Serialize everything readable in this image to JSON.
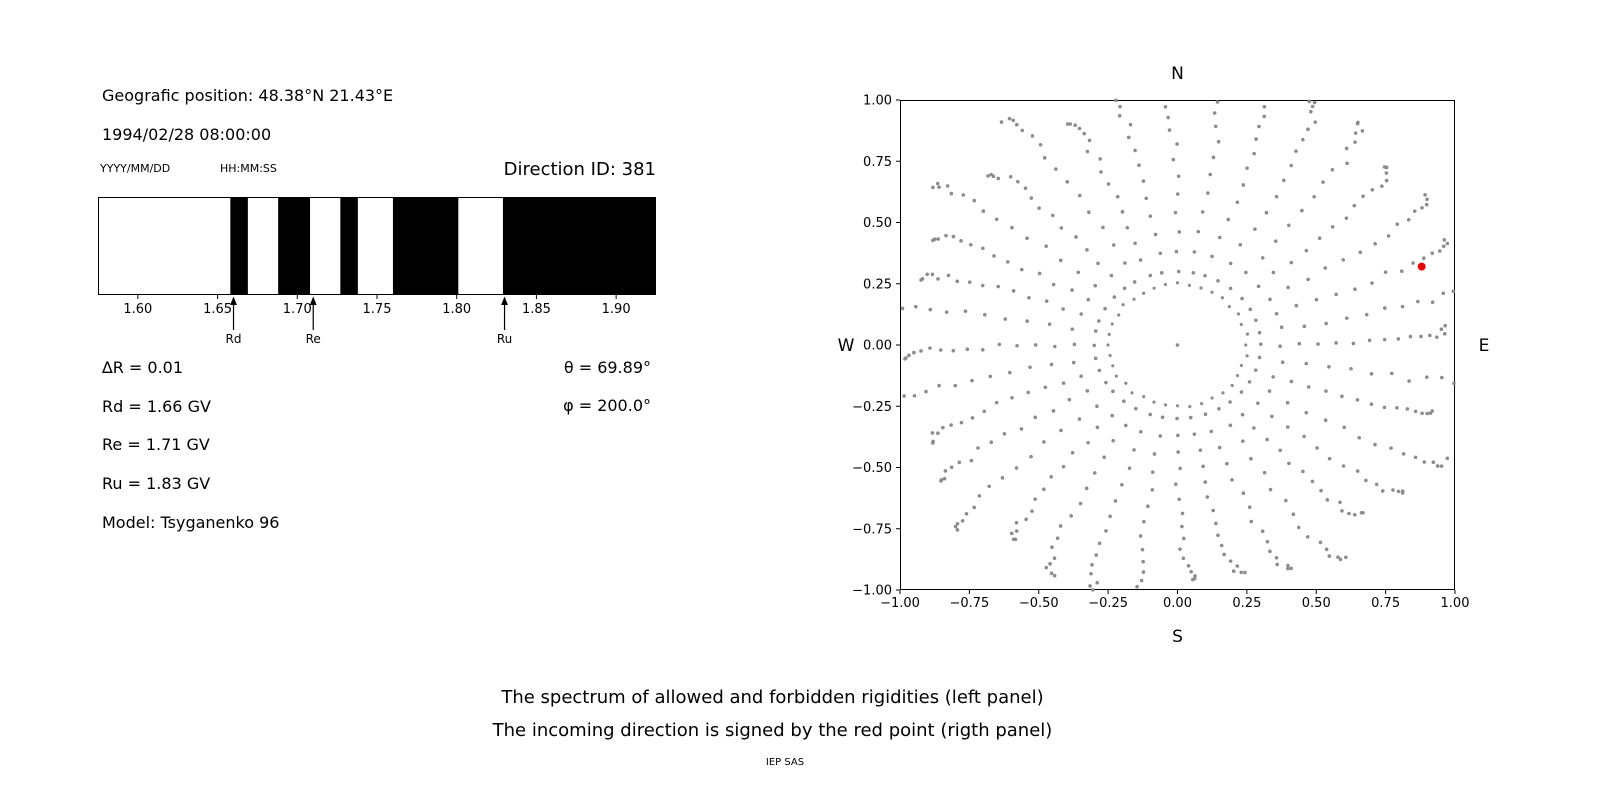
{
  "colors": {
    "background": "#ffffff",
    "band": "#000000",
    "axis": "#000000",
    "dots": "#8c8c8c",
    "red_point": "#e50000"
  },
  "header": {
    "geographic_position": "Geografic position: 48.38°N 21.43°E",
    "datetime": "1994/02/28 08:00:00",
    "date_format": "YYYY/MM/DD",
    "time_format": "HH:MM:SS",
    "direction_id": "Direction ID: 381"
  },
  "stats": {
    "delta_r": "∆R = 0.01",
    "rd": "Rd = 1.66 GV",
    "re": "Re = 1.71 GV",
    "ru": "Ru = 1.83 GV",
    "model": "Model: Tsyganenko 96",
    "theta": "θ = 69.89°",
    "phi": "φ = 200.0°"
  },
  "captions": {
    "line1": "The spectrum of allowed and forbidden rigidities (left panel)",
    "line2": "The incoming direction is signed by the red point (rigth panel)",
    "credit": "IEP SAS"
  },
  "chart_data": [
    {
      "name": "rigidity-spectrum",
      "type": "area",
      "description": "Penumbra barcode of cutoff rigidities: black bands = allowed, white = forbidden",
      "xlim": [
        1.575,
        1.925
      ],
      "xticks": [
        1.6,
        1.65,
        1.7,
        1.75,
        1.8,
        1.85,
        1.9
      ],
      "black_bands": [
        [
          1.658,
          1.669
        ],
        [
          1.688,
          1.708
        ],
        [
          1.727,
          1.738
        ],
        [
          1.76,
          1.801
        ],
        [
          1.829,
          1.925
        ]
      ],
      "markers": [
        {
          "label": "Rd",
          "x": 1.66
        },
        {
          "label": "Re",
          "x": 1.71
        },
        {
          "label": "Ru",
          "x": 1.83
        }
      ]
    },
    {
      "name": "incoming-direction-map",
      "type": "scatter",
      "description": "Direction map with gray dotted radial spokes, inner dotted ring and red incoming-direction point",
      "xlim": [
        -1,
        1
      ],
      "ylim": [
        -1,
        1
      ],
      "ticks": [
        -1.0,
        -0.75,
        -0.5,
        -0.25,
        0.0,
        0.25,
        0.5,
        0.75,
        1.0
      ],
      "compass": {
        "top": "N",
        "bottom": "S",
        "left": "W",
        "right": "E"
      },
      "gray_pattern": {
        "spoke_count": 36,
        "angle_start_deg": 0,
        "angle_step_deg": 10,
        "r_inner": 0.3,
        "r_outer_min": 0.95,
        "r_outer_max": 1.12,
        "dots_per_spoke": 16,
        "curl_deg": 4,
        "ring_radius": 0.25,
        "ring_dots": 36,
        "center_dot": true
      },
      "red_point": {
        "x": 0.88,
        "y": 0.32
      }
    }
  ]
}
